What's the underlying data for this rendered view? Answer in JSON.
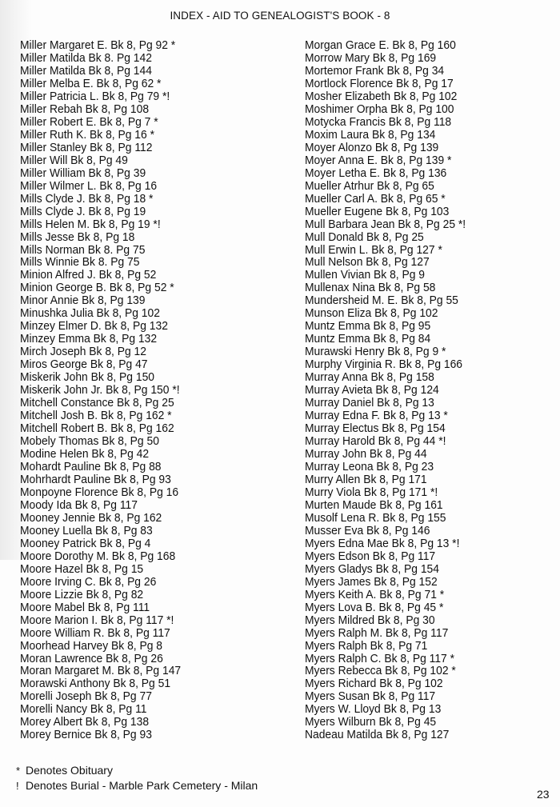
{
  "title": "INDEX - AID TO GENEALOGIST'S BOOK - 8",
  "left_column": [
    "Miller Margaret E. Bk 8, Pg 92 *",
    "Miller Matilda Bk 8. Pg 142",
    "Miller Matilda Bk 8, Pg 144",
    "Miller Melba E. Bk 8, Pg 62 *",
    "Miller Patricia L. Bk 8, Pg 79 *!",
    "Miller Rebah Bk 8, Pg 108",
    "Miller Robert E. Bk 8, Pg 7 *",
    "Miller Ruth K. Bk 8, Pg 16 *",
    "Miller Stanley Bk 8, Pg 112",
    "Miller Will Bk 8, Pg 49",
    "Miller William Bk 8, Pg 39",
    "Miller Wilmer L. Bk 8, Pg 16",
    "Mills Clyde J. Bk 8, Pg 18 *",
    "Mills Clyde J. Bk 8, Pg 19",
    "Mills Helen M. Bk 8, Pg 19 *!",
    "Mills Jesse Bk 8, Pg 18",
    "Mills Norman Bk 8. Pg 75",
    "Mills Winnie Bk 8. Pg 75",
    "Minion Alfred J. Bk 8, Pg 52",
    "Minion George B. Bk 8, Pg 52 *",
    "Minor Annie Bk 8, Pg 139",
    "Minushka Julia Bk 8, Pg 102",
    "Minzey Elmer D. Bk 8, Pg 132",
    "Minzey Emma Bk 8, Pg 132",
    "Mirch Joseph Bk 8, Pg 12",
    "Miros George Bk 8, Pg 47",
    "Miskerik John Bk 8, Pg 150",
    "Miskerik John Jr. Bk 8, Pg 150 *!",
    "Mitchell Constance Bk 8, Pg 25",
    "Mitchell Josh B. Bk 8, Pg 162 *",
    "Mitchell Robert B. Bk 8, Pg 162",
    "Mobely Thomas Bk 8, Pg 50",
    "Modine Helen Bk 8, Pg 42",
    "Mohardt Pauline Bk 8, Pg 88",
    "Mohrhardt Pauline Bk 8, Pg 93",
    "Monpoyne Florence Bk 8, Pg 16",
    "Moody Ida Bk 8, Pg 117",
    "Mooney Jennie Bk 8, Pg 162",
    "Mooney Luella Bk 8, Pg 83",
    "Mooney Patrick Bk 8, Pg 4",
    "Moore Dorothy M. Bk 8, Pg 168",
    "Moore Hazel Bk 8, Pg 15",
    "Moore Irving C. Bk 8, Pg 26",
    "Moore Lizzie Bk 8, Pg 82",
    "Moore Mabel Bk 8, Pg 111",
    "Moore Marion I. Bk 8, Pg 117 *!",
    "Moore William R. Bk 8, Pg 117",
    "Moorhead Harvey Bk 8, Pg 8",
    "Moran Lawrence Bk 8, Pg 26",
    "Moran Margaret M. Bk 8, Pg 147",
    "Morawski Anthony Bk 8, Pg 51",
    "Morelli Joseph Bk 8, Pg 77",
    "Morelli Nancy Bk 8, Pg 11",
    "Morey Albert Bk 8, Pg 138",
    "Morey Bernice Bk 8, Pg 93"
  ],
  "right_column": [
    "Morgan Grace E. Bk 8, Pg 160",
    "Morrow Mary Bk 8, Pg 169",
    "Mortemor Frank Bk 8, Pg 34",
    "Mortlock Florence Bk 8, Pg 17",
    "Mosher Elizabeth Bk 8, Pg 102",
    "Moshimer Orpha Bk 8, Pg 100",
    "Motycka Francis Bk 8, Pg 118",
    "Moxim Laura Bk 8, Pg 134",
    "Moyer Alonzo Bk 8, Pg 139",
    "Moyer Anna E. Bk 8, Pg 139 *",
    "Moyer Letha E. Bk 8, Pg 136",
    "Mueller Atrhur Bk 8, Pg 65",
    "Mueller Carl A. Bk 8, Pg 65 *",
    "Mueller Eugene Bk 8, Pg 103",
    "Mull Barbara Jean Bk 8, Pg 25 *!",
    "Mull Donald Bk 8, Pg 25",
    "Mull Erwin L. Bk 8, Pg 127 *",
    "Mull Nelson Bk 8, Pg 127",
    "Mullen Vivian Bk 8, Pg 9",
    "Mullenax Nina Bk 8, Pg 58",
    "Mundersheid M. E. Bk 8, Pg 55",
    "Munson Eliza Bk 8, Pg 102",
    "Muntz Emma Bk 8, Pg 95",
    "Muntz Emma Bk 8, Pg 84",
    "Murawski Henry Bk 8, Pg 9 *",
    "Murphy Virginia R. Bk 8, Pg 166",
    "Murray Anna Bk 8, Pg 158",
    "Murray Avieta Bk 8, Pg 124",
    "Murray Daniel Bk 8, Pg 13",
    "Murray Edna F. Bk 8, Pg 13 *",
    "Murray Electus Bk 8, Pg 154",
    "Murray Harold Bk 8, Pg 44 *!",
    "Murray John Bk 8, Pg 44",
    "Murray Leona Bk 8, Pg 23",
    "Murry Allen Bk 8, Pg 171",
    "Murry Viola Bk 8, Pg 171 *!",
    "Murten Maude Bk 8, Pg 161",
    "Musolf Lena R. Bk 8, Pg 155",
    "Musser Eva Bk 8, Pg 146",
    "Myers Edna Mae Bk 8, Pg 13 *!",
    "Myers Edson Bk 8, Pg 117",
    "Myers Gladys Bk 8, Pg 154",
    "Myers James Bk 8, Pg 152",
    "Myers Keith A. Bk 8, Pg 71 *",
    "Myers Lova B. Bk 8, Pg 45 *",
    "Myers Mildred Bk 8, Pg 30",
    "Myers Ralph M. Bk 8, Pg 117",
    "Myers Ralph Bk 8, Pg 71",
    "Myers Ralph C. Bk 8, Pg 117 *",
    "Myers Rebecca Bk 8, Pg 102 *",
    "Myers Richard Bk 8, Pg 102",
    "Myers Susan Bk 8, Pg 117",
    "Myers W. Lloyd Bk 8, Pg 13",
    "Myers Wilburn Bk 8, Pg 45",
    "Nadeau Matilda Bk 8, Pg 127"
  ],
  "legend": {
    "obituary_symbol": "*",
    "obituary_text": "Denotes Obituary",
    "burial_symbol": "!",
    "burial_text": "Denotes Burial - Marble Park Cemetery - Milan"
  },
  "page_number": "23"
}
